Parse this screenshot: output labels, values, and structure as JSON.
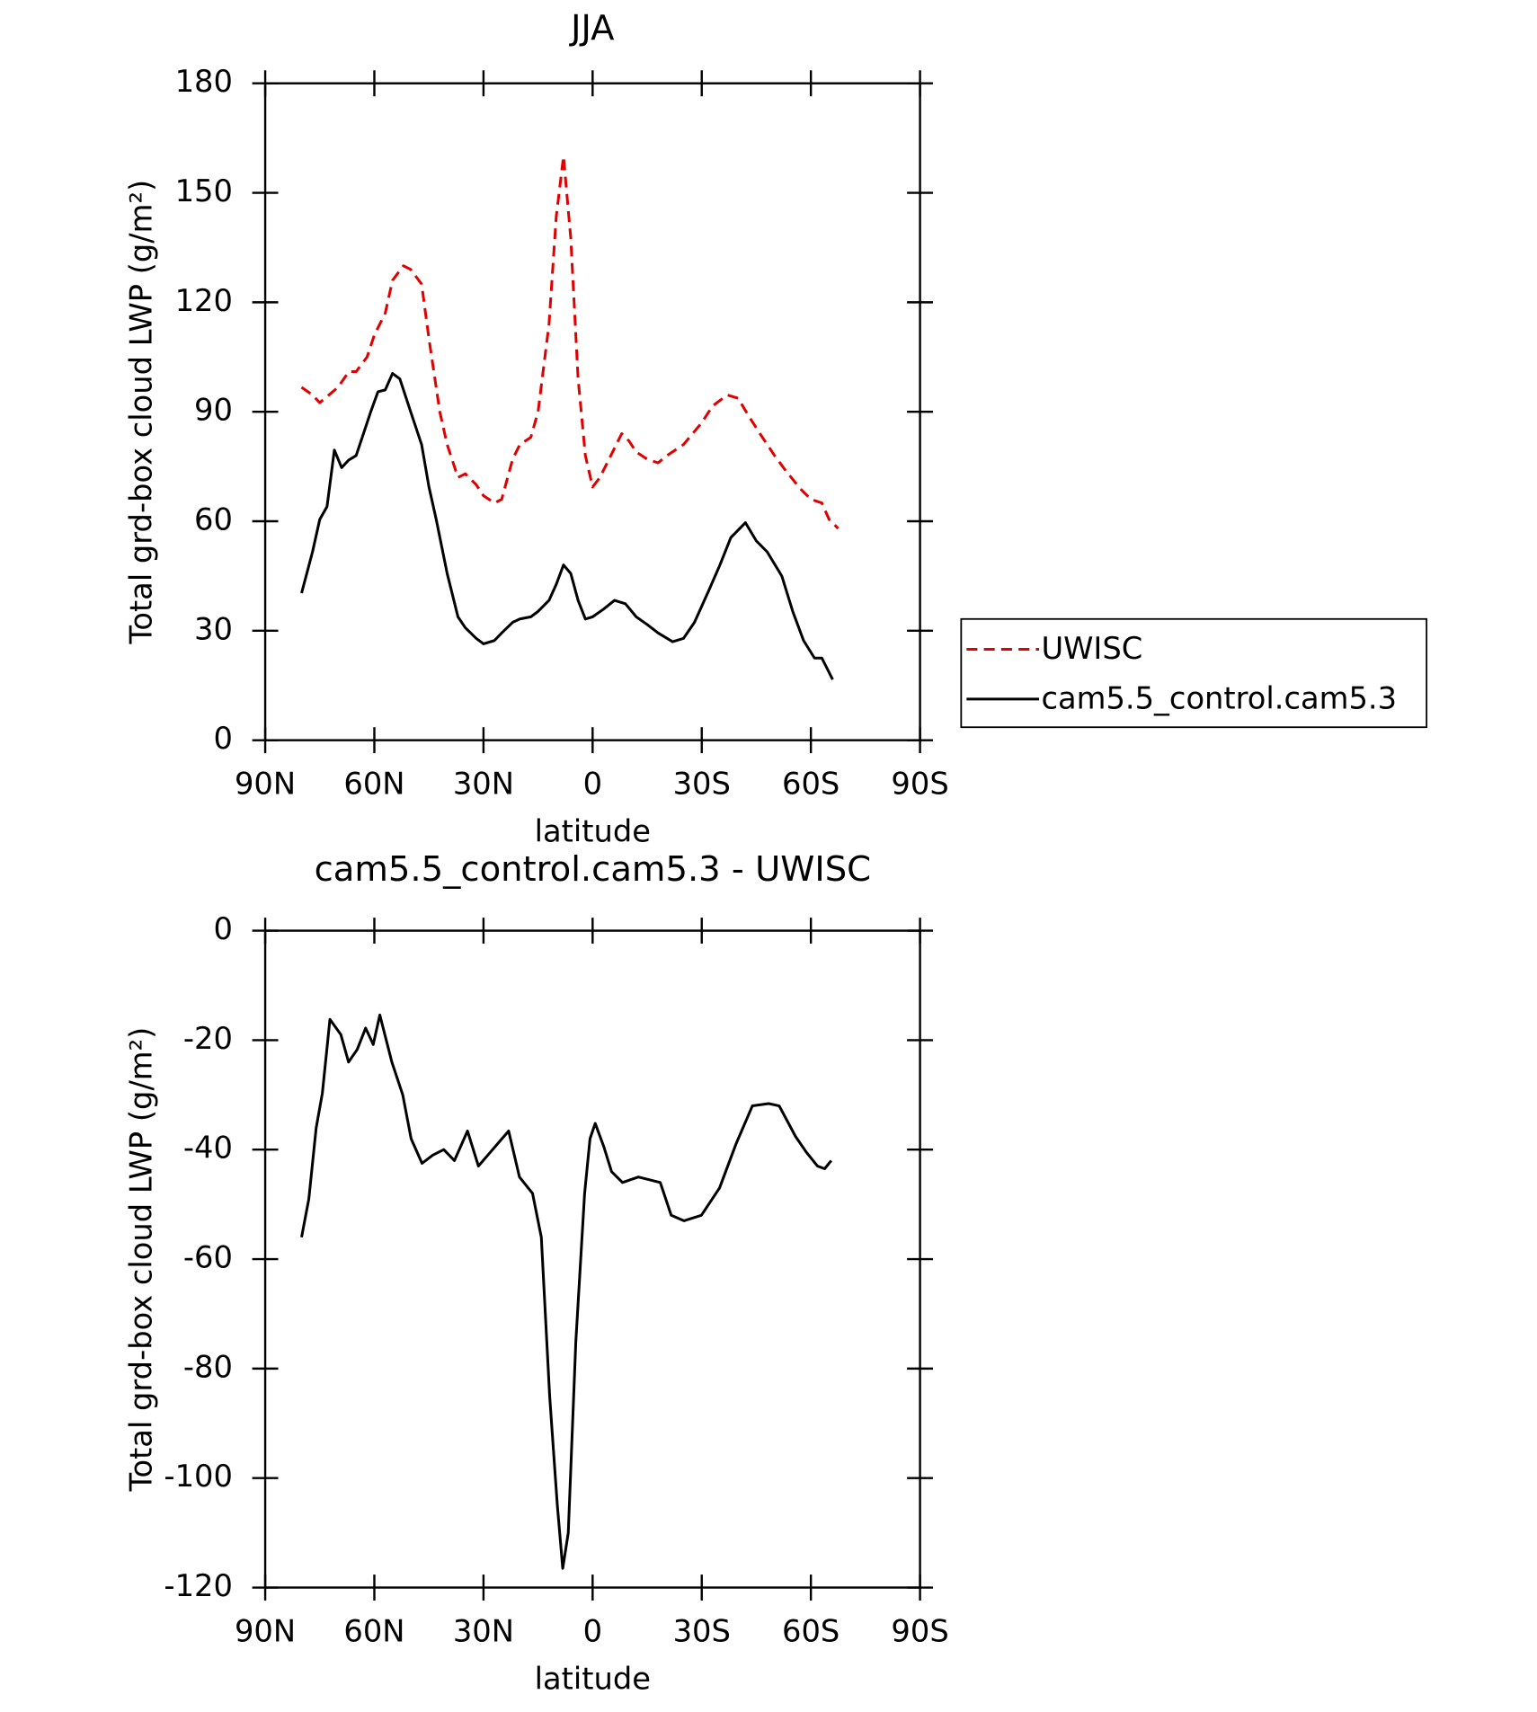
{
  "chart_data": [
    {
      "type": "line",
      "title": "JJA",
      "xlabel": "latitude",
      "ylabel": "Total grd-box cloud LWP (g/m²)",
      "xlim": [
        90,
        -90
      ],
      "xticks": [
        {
          "value": 90,
          "label": "90N"
        },
        {
          "value": 60,
          "label": "60N"
        },
        {
          "value": 30,
          "label": "30N"
        },
        0,
        {
          "value": -30,
          "label": "30S"
        },
        {
          "value": -60,
          "label": "60S"
        },
        {
          "value": -90,
          "label": "90S"
        }
      ],
      "ylim": [
        0,
        180
      ],
      "yticks": [
        0,
        30,
        60,
        90,
        120,
        150,
        180
      ],
      "legend": "right",
      "series": [
        {
          "name": "UWISC",
          "color": "#e00000",
          "line_style": "dashed",
          "x": [
            80,
            77,
            75,
            72,
            70,
            67,
            65,
            62,
            60,
            57,
            55,
            52,
            50,
            47,
            45,
            42,
            40,
            37,
            35,
            32,
            30,
            27,
            25,
            22,
            20,
            17,
            15,
            12,
            10,
            8,
            6,
            4,
            2,
            0,
            -2,
            -5,
            -8,
            -10,
            -12,
            -15,
            -18,
            -20,
            -25,
            -30,
            -33,
            -37,
            -40,
            -43,
            -46,
            -50,
            -53,
            -57,
            -60,
            -63,
            -65,
            -67.5
          ],
          "values": [
            96.7,
            94.6,
            92.5,
            95,
            96.7,
            101,
            101,
            105,
            111,
            117,
            126,
            130,
            129,
            125,
            110,
            90,
            81,
            72,
            73,
            70,
            67,
            65,
            66,
            77,
            81,
            83,
            90,
            114,
            143.5,
            160,
            137.6,
            99,
            78,
            69.4,
            72,
            78,
            84,
            82,
            79,
            77,
            76,
            77.7,
            81,
            87,
            91.6,
            94.6,
            93.7,
            88.7,
            84,
            78,
            74,
            69,
            66,
            65,
            60.5,
            58
          ]
        },
        {
          "name": "cam5.5_control.cam5.3",
          "color": "#000000",
          "line_style": "solid",
          "x": [
            80,
            77,
            75,
            73,
            71,
            69,
            67,
            65,
            63,
            61,
            59,
            57,
            55,
            53,
            50,
            47,
            45,
            43,
            40,
            37,
            35,
            32,
            30,
            27,
            25,
            22,
            20,
            17,
            15,
            12,
            10,
            8,
            6,
            4,
            2,
            0,
            -3,
            -6,
            -9,
            -12,
            -15,
            -18,
            -22,
            -25,
            -28,
            -32,
            -35,
            -38,
            -42,
            -45,
            -48,
            -52,
            -55,
            -58,
            -61,
            -63,
            -66
          ],
          "values": [
            40.3,
            51.6,
            60.5,
            64,
            79.5,
            74.7,
            76.8,
            78,
            84,
            90,
            95.5,
            96,
            100.5,
            99,
            90,
            81,
            69.4,
            60.5,
            45.7,
            33.8,
            30.8,
            27.9,
            26.4,
            27.3,
            29.4,
            32.3,
            33.2,
            33.8,
            35.3,
            38.3,
            42.7,
            48,
            45.7,
            38.3,
            33.2,
            33.8,
            35.9,
            38.3,
            37.4,
            33.8,
            31.7,
            29.4,
            27,
            27.9,
            32.3,
            41.2,
            48,
            55.5,
            59.6,
            54.6,
            51.6,
            45,
            35.3,
            27.3,
            22.5,
            22.5,
            16.6
          ]
        }
      ]
    },
    {
      "type": "line",
      "title": "cam5.5_control.cam5.3 - UWISC",
      "xlabel": "latitude",
      "ylabel": "Total grd-box cloud LWP (g/m²)",
      "xlim": [
        90,
        -90
      ],
      "xticks": [
        {
          "value": 90,
          "label": "90N"
        },
        {
          "value": 60,
          "label": "60N"
        },
        {
          "value": 30,
          "label": "30N"
        },
        0,
        {
          "value": -30,
          "label": "30S"
        },
        {
          "value": -60,
          "label": "60S"
        },
        {
          "value": -90,
          "label": "90S"
        }
      ],
      "ylim": [
        -120,
        0
      ],
      "yticks": [
        -120,
        -100,
        -80,
        -60,
        -40,
        -20,
        0
      ],
      "series": [
        {
          "color": "#000000",
          "line_style": "solid",
          "x": [
            80,
            78,
            76,
            74.3,
            72.2,
            69.2,
            67.1,
            64.7,
            62.4,
            60.3,
            58.5,
            55.2,
            52.2,
            49.9,
            46.9,
            43.9,
            40.9,
            38,
            34.4,
            31.4,
            27.5,
            23.1,
            20.1,
            16.5,
            14.1,
            11.8,
            9.7,
            8.2,
            6.7,
            4.6,
            2.2,
            0.7,
            -0.7,
            -3.1,
            -5.2,
            -8.2,
            -12.6,
            -18.6,
            -21.6,
            -25.1,
            -29.9,
            -34.9,
            -39.4,
            -43.9,
            -48.4,
            -51.3,
            -55.8,
            -58.8,
            -61.8,
            -63.8,
            -65.6
          ],
          "values": [
            -56,
            -49,
            -36,
            -29.7,
            -16.2,
            -19,
            -24,
            -21.7,
            -17.8,
            -20.8,
            -15.4,
            -24,
            -30,
            -38,
            -42.5,
            -41,
            -40,
            -42,
            -36.6,
            -43,
            -40,
            -36.6,
            -45,
            -48,
            -56,
            -85,
            -105,
            -116.5,
            -110,
            -75,
            -48,
            -38,
            -35.2,
            -39.5,
            -44,
            -46,
            -45,
            -46,
            -52,
            -53,
            -52,
            -47,
            -39,
            -32,
            -31.6,
            -32,
            -37.6,
            -40.5,
            -43,
            -43.5,
            -42
          ]
        }
      ]
    }
  ]
}
